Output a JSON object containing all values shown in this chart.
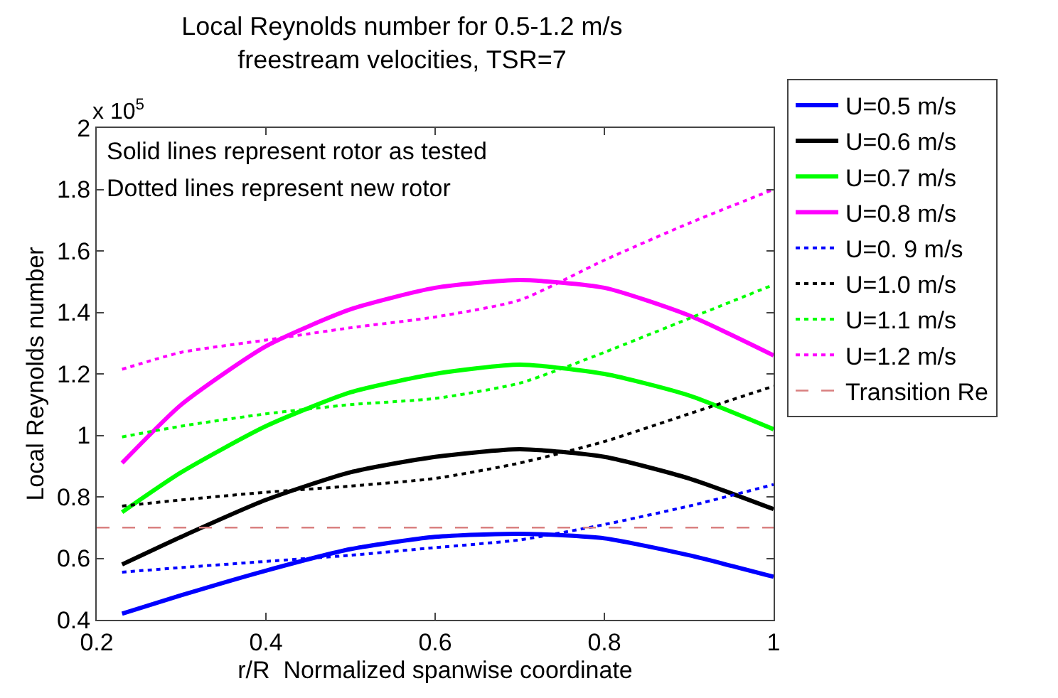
{
  "chart_data": {
    "type": "line",
    "title": "Local Reynolds number for 0.5-1.2 m/s\nfreestream velocities, TSR=7",
    "xlabel": "r/R  Normalized spanwise coordinate",
    "ylabel": "Local Reynolds number",
    "x": [
      0.23,
      0.3,
      0.4,
      0.5,
      0.6,
      0.7,
      0.8,
      0.9,
      1.0
    ],
    "series": [
      {
        "name": "U=0.5 m/s",
        "color": "#0000ff",
        "line_style": "solid",
        "values": [
          0.42,
          0.48,
          0.56,
          0.63,
          0.67,
          0.68,
          0.665,
          0.61,
          0.54
        ]
      },
      {
        "name": "U=0.6 m/s",
        "color": "#000000",
        "line_style": "solid",
        "values": [
          0.58,
          0.67,
          0.79,
          0.88,
          0.93,
          0.955,
          0.93,
          0.86,
          0.76
        ]
      },
      {
        "name": "U=0.7 m/s",
        "color": "#00ff00",
        "line_style": "solid",
        "values": [
          0.75,
          0.88,
          1.03,
          1.14,
          1.2,
          1.23,
          1.2,
          1.13,
          1.02
        ]
      },
      {
        "name": "U=0.8 m/s",
        "color": "#ff00ff",
        "line_style": "solid",
        "values": [
          0.91,
          1.1,
          1.29,
          1.41,
          1.48,
          1.505,
          1.48,
          1.39,
          1.26
        ]
      },
      {
        "name": "U=0. 9 m/s",
        "color": "#0000ff",
        "line_style": "dotted",
        "values": [
          0.555,
          0.57,
          0.59,
          0.61,
          0.635,
          0.66,
          0.71,
          0.77,
          0.84
        ]
      },
      {
        "name": "U=1.0 m/s",
        "color": "#000000",
        "line_style": "dotted",
        "values": [
          0.77,
          0.79,
          0.815,
          0.835,
          0.86,
          0.91,
          0.98,
          1.07,
          1.16
        ]
      },
      {
        "name": "U=1.1 m/s",
        "color": "#00ff00",
        "line_style": "dotted",
        "values": [
          0.995,
          1.03,
          1.07,
          1.1,
          1.12,
          1.17,
          1.27,
          1.38,
          1.49
        ]
      },
      {
        "name": "U=1.2 m/s",
        "color": "#ff00ff",
        "line_style": "dotted",
        "values": [
          1.215,
          1.27,
          1.31,
          1.35,
          1.385,
          1.44,
          1.57,
          1.69,
          1.8
        ]
      }
    ],
    "ref_lines": [
      {
        "axis": "y",
        "value": 0.7,
        "label": "Transition Re",
        "color": "#d98080",
        "line_style": "dashed"
      }
    ],
    "annotations": [
      "x 10$^{5}$",
      "Solid lines represent rotor as tested",
      "Dotted lines represent new rotor"
    ],
    "xlim": [
      0.2,
      1
    ],
    "xticks": [
      0.2,
      0.4,
      0.6,
      0.8,
      1
    ],
    "ylim": [
      0.4,
      2
    ],
    "yticks": [
      0.4,
      0.6,
      0.8,
      1,
      1.2,
      1.4,
      1.6,
      1.8,
      2
    ],
    "grid": false,
    "legend": "right",
    "marker": "none"
  }
}
